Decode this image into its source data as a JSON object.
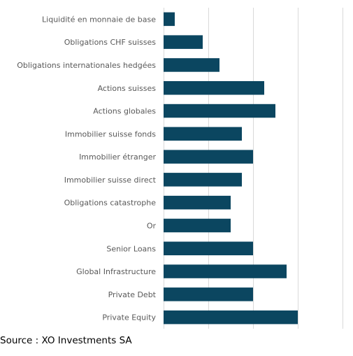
{
  "chart_data": {
    "type": "bar",
    "orientation": "horizontal",
    "categories": [
      "Liquidité en monnaie de base",
      "Obligations CHF suisses",
      "Obligations internationales hedgées",
      "Actions suisses",
      "Actions globales",
      "Immobilier suisse fonds",
      "Immobilier étranger",
      "Immobilier suisse direct",
      "Obligations catastrophe",
      "Or",
      "Senior Loans",
      "Global Infrastructure",
      "Private Debt",
      "Private Equity"
    ],
    "values": [
      1,
      3.5,
      5,
      9,
      10,
      7,
      8,
      7,
      6,
      6,
      8,
      11,
      8,
      12
    ],
    "xlim": [
      0,
      16
    ],
    "grid": true,
    "gridlines_at": [
      0,
      4,
      8,
      12,
      16
    ],
    "tick_labels_shown": false,
    "bar_color": "#0b4660",
    "title": "",
    "xlabel": "",
    "ylabel": ""
  },
  "source": "Source : XO Investments SA"
}
